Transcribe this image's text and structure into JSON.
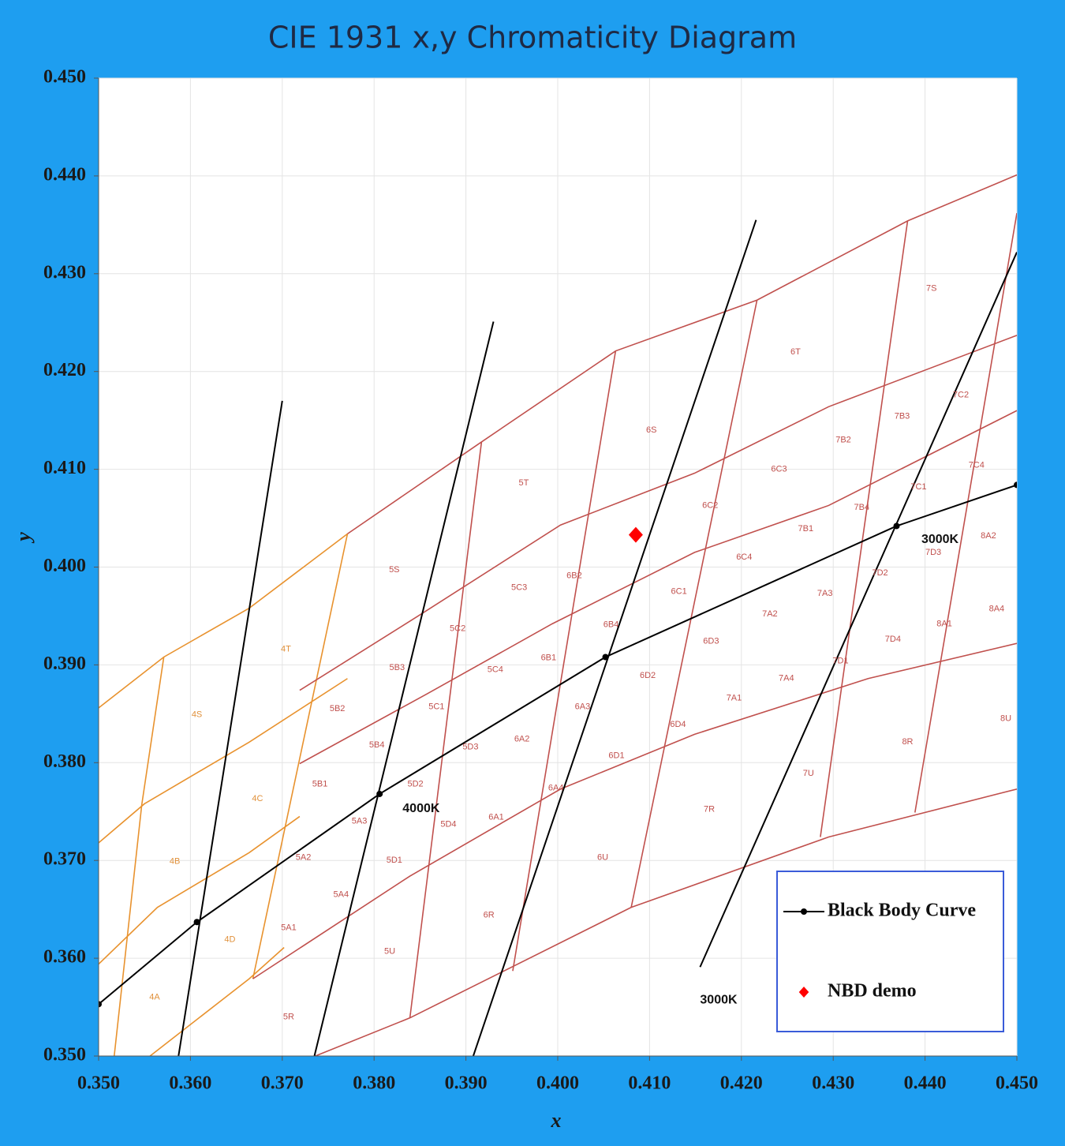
{
  "chart_data": {
    "type": "line",
    "title": "CIE 1931 x,y Chromaticity Diagram",
    "x_label": "x",
    "y_label": "y",
    "xlim": [
      0.35,
      0.45
    ],
    "ylim": [
      0.35,
      0.45
    ],
    "xticks": [
      {
        "value": 0.35,
        "label": "0.350"
      },
      {
        "value": 0.36,
        "label": "0.360"
      },
      {
        "value": 0.37,
        "label": "0.370"
      },
      {
        "value": 0.38,
        "label": "0.380"
      },
      {
        "value": 0.39,
        "label": "0.390"
      },
      {
        "value": 0.4,
        "label": "0.400"
      },
      {
        "value": 0.41,
        "label": "0.410"
      },
      {
        "value": 0.42,
        "label": "0.420"
      },
      {
        "value": 0.43,
        "label": "0.430"
      },
      {
        "value": 0.44,
        "label": "0.440"
      },
      {
        "value": 0.45,
        "label": "0.450"
      }
    ],
    "yticks": [
      {
        "value": 0.35,
        "label": "0.350"
      },
      {
        "value": 0.36,
        "label": "0.360"
      },
      {
        "value": 0.37,
        "label": "0.370"
      },
      {
        "value": 0.38,
        "label": "0.380"
      },
      {
        "value": 0.39,
        "label": "0.390"
      },
      {
        "value": 0.4,
        "label": "0.400"
      },
      {
        "value": 0.41,
        "label": "0.410"
      },
      {
        "value": 0.42,
        "label": "0.420"
      },
      {
        "value": 0.43,
        "label": "0.430"
      },
      {
        "value": 0.44,
        "label": "0.440"
      },
      {
        "value": 0.45,
        "label": "0.450"
      }
    ],
    "grid": true,
    "legend": "lower right",
    "series": [
      {
        "name": "Black Body Curve",
        "color": "#000000",
        "mode": "lines+markers",
        "x": [
          0.35,
          0.3607,
          0.3806,
          0.4052,
          0.4369,
          0.45
        ],
        "values": [
          0.3553,
          0.3637,
          0.3768,
          0.3908,
          0.4042,
          0.4084
        ]
      },
      {
        "name": "NBD demo",
        "color": "#ff0000",
        "mode": "markers",
        "x": [
          0.4085
        ],
        "values": [
          0.4033
        ]
      }
    ],
    "isotherms": {
      "color": "#000000",
      "lines": [
        {
          "x": [
            0.37,
            0.3587
          ],
          "y": [
            0.417,
            0.35
          ]
        },
        {
          "x": [
            0.393,
            0.3735
          ],
          "y": [
            0.4251,
            0.35
          ]
        },
        {
          "x": [
            0.4216,
            0.3908
          ],
          "y": [
            0.4355,
            0.35
          ]
        },
        {
          "x": [
            0.45,
            0.4155
          ],
          "y": [
            0.4322,
            0.3591
          ]
        }
      ]
    },
    "bin_lines": [
      {
        "color": "#e8922e",
        "x": [
          0.35,
          0.3571,
          0.3664,
          0.3771
        ],
        "y": [
          0.3856,
          0.3908,
          0.3958,
          0.4034
        ]
      },
      {
        "color": "#e8922e",
        "x": [
          0.35,
          0.355,
          0.3664,
          0.3771
        ],
        "y": [
          0.3718,
          0.3758,
          0.3821,
          0.3886
        ]
      },
      {
        "color": "#e8922e",
        "x": [
          0.35,
          0.3564,
          0.3664,
          0.3719
        ],
        "y": [
          0.3594,
          0.3652,
          0.3708,
          0.3745
        ]
      },
      {
        "color": "#e8922e",
        "x": [
          0.3556,
          0.3664,
          0.3702
        ],
        "y": [
          0.35,
          0.3579,
          0.3611
        ]
      },
      {
        "color": "#e8922e",
        "x": [
          0.3571,
          0.3547,
          0.3517
        ],
        "y": [
          0.3908,
          0.3757,
          0.35
        ]
      },
      {
        "color": "#e8922e",
        "x": [
          0.3771,
          0.3668
        ],
        "y": [
          0.4034,
          0.3579
        ]
      },
      {
        "color": "#c0504d",
        "x": [
          0.3771,
          0.3917,
          0.4063,
          0.4217,
          0.4381,
          0.45
        ],
        "y": [
          0.4034,
          0.4128,
          0.4221,
          0.4273,
          0.4354,
          0.4401
        ]
      },
      {
        "color": "#c0504d",
        "x": [
          0.3719,
          0.3848,
          0.4003,
          0.4149,
          0.4295,
          0.45
        ],
        "y": [
          0.3874,
          0.395,
          0.4043,
          0.4096,
          0.4164,
          0.4237
        ]
      },
      {
        "color": "#c0504d",
        "x": [
          0.3719,
          0.3857,
          0.3994,
          0.4149,
          0.4295,
          0.45
        ],
        "y": [
          0.3799,
          0.387,
          0.3942,
          0.4015,
          0.4063,
          0.416
        ]
      },
      {
        "color": "#c0504d",
        "x": [
          0.3668,
          0.3839,
          0.4003,
          0.4149,
          0.4338,
          0.45
        ],
        "y": [
          0.3579,
          0.3684,
          0.3773,
          0.3829,
          0.3886,
          0.3922
        ]
      },
      {
        "color": "#c0504d",
        "x": [
          0.3736,
          0.3839,
          0.408,
          0.4295,
          0.45
        ],
        "y": [
          0.35,
          0.3539,
          0.3652,
          0.3724,
          0.3773
        ]
      },
      {
        "color": "#c0504d",
        "x": [
          0.3917,
          0.3839
        ],
        "y": [
          0.4128,
          0.3539
        ]
      },
      {
        "color": "#c0504d",
        "x": [
          0.4063,
          0.3951
        ],
        "y": [
          0.4221,
          0.3587
        ]
      },
      {
        "color": "#c0504d",
        "x": [
          0.4217,
          0.408
        ],
        "y": [
          0.4273,
          0.3652
        ]
      },
      {
        "color": "#c0504d",
        "x": [
          0.4381,
          0.4286
        ],
        "y": [
          0.4354,
          0.3724
        ]
      },
      {
        "color": "#c0504d",
        "x": [
          0.45,
          0.4389
        ],
        "y": [
          0.4362,
          0.3749
        ]
      }
    ],
    "bin_labels": [
      {
        "color": "#e0903a",
        "labels": [
          {
            "text": "4S",
            "x": 0.3607,
            "y": 0.3849
          },
          {
            "text": "4T",
            "x": 0.3704,
            "y": 0.3916
          },
          {
            "text": "4C",
            "x": 0.3673,
            "y": 0.3763
          },
          {
            "text": "4B",
            "x": 0.3583,
            "y": 0.3699
          },
          {
            "text": "4D",
            "x": 0.3643,
            "y": 0.3619
          },
          {
            "text": "4A",
            "x": 0.3561,
            "y": 0.356
          }
        ]
      },
      {
        "color": "#c0504d",
        "labels": [
          {
            "text": "5R",
            "x": 0.3707,
            "y": 0.354
          },
          {
            "text": "5U",
            "x": 0.3817,
            "y": 0.3607
          },
          {
            "text": "6R",
            "x": 0.3925,
            "y": 0.3644
          },
          {
            "text": "6U",
            "x": 0.4049,
            "y": 0.3703
          },
          {
            "text": "7R",
            "x": 0.4165,
            "y": 0.3752
          },
          {
            "text": "7U",
            "x": 0.4273,
            "y": 0.3789
          },
          {
            "text": "8R",
            "x": 0.4381,
            "y": 0.3821
          },
          {
            "text": "8U",
            "x": 0.4488,
            "y": 0.3845
          },
          {
            "text": "5S",
            "x": 0.3822,
            "y": 0.3997
          },
          {
            "text": "5T",
            "x": 0.3963,
            "y": 0.4086
          },
          {
            "text": "6S",
            "x": 0.4102,
            "y": 0.414
          },
          {
            "text": "6T",
            "x": 0.4259,
            "y": 0.422
          },
          {
            "text": "7S",
            "x": 0.4407,
            "y": 0.4285
          },
          {
            "text": "5B2",
            "x": 0.376,
            "y": 0.3855
          },
          {
            "text": "5B3",
            "x": 0.3825,
            "y": 0.3897
          },
          {
            "text": "5C2",
            "x": 0.3891,
            "y": 0.3937
          },
          {
            "text": "5C3",
            "x": 0.3958,
            "y": 0.3979
          },
          {
            "text": "6B2",
            "x": 0.4018,
            "y": 0.3991
          },
          {
            "text": "6C2",
            "x": 0.4166,
            "y": 0.4063
          },
          {
            "text": "6C3",
            "x": 0.4241,
            "y": 0.41
          },
          {
            "text": "7B2",
            "x": 0.4311,
            "y": 0.413
          },
          {
            "text": "7B3",
            "x": 0.4375,
            "y": 0.4154
          },
          {
            "text": "7C2",
            "x": 0.4439,
            "y": 0.4176
          },
          {
            "text": "7C4",
            "x": 0.4456,
            "y": 0.4104
          },
          {
            "text": "7C1",
            "x": 0.4393,
            "y": 0.4082
          },
          {
            "text": "7B4",
            "x": 0.4331,
            "y": 0.4061
          },
          {
            "text": "7B1",
            "x": 0.427,
            "y": 0.4039
          },
          {
            "text": "6C4",
            "x": 0.4203,
            "y": 0.401
          },
          {
            "text": "6C1",
            "x": 0.4132,
            "y": 0.3975
          },
          {
            "text": "5B4",
            "x": 0.3803,
            "y": 0.3818
          },
          {
            "text": "5C1",
            "x": 0.3868,
            "y": 0.3857
          },
          {
            "text": "5C4",
            "x": 0.3932,
            "y": 0.3895
          },
          {
            "text": "6B1",
            "x": 0.399,
            "y": 0.3907
          },
          {
            "text": "6B4",
            "x": 0.4058,
            "y": 0.3941
          },
          {
            "text": "6D3",
            "x": 0.4167,
            "y": 0.3924
          },
          {
            "text": "7A2",
            "x": 0.4231,
            "y": 0.3952
          },
          {
            "text": "7A3",
            "x": 0.4291,
            "y": 0.3973
          },
          {
            "text": "7D2",
            "x": 0.4351,
            "y": 0.3994
          },
          {
            "text": "7D3",
            "x": 0.4409,
            "y": 0.4015
          },
          {
            "text": "8A2",
            "x": 0.4469,
            "y": 0.4032
          },
          {
            "text": "8A4",
            "x": 0.4478,
            "y": 0.3957
          },
          {
            "text": "8A1",
            "x": 0.4421,
            "y": 0.3942
          },
          {
            "text": "7D4",
            "x": 0.4365,
            "y": 0.3926
          },
          {
            "text": "7D1",
            "x": 0.4308,
            "y": 0.3904
          },
          {
            "text": "7A4",
            "x": 0.4249,
            "y": 0.3886
          },
          {
            "text": "7A1",
            "x": 0.4192,
            "y": 0.3866
          },
          {
            "text": "6D2",
            "x": 0.4098,
            "y": 0.3889
          },
          {
            "text": "6D4",
            "x": 0.4131,
            "y": 0.3839
          },
          {
            "text": "6D1",
            "x": 0.4064,
            "y": 0.3807
          },
          {
            "text": "6A3",
            "x": 0.4027,
            "y": 0.3857
          },
          {
            "text": "6A2",
            "x": 0.3961,
            "y": 0.3824
          },
          {
            "text": "5D3",
            "x": 0.3905,
            "y": 0.3816
          },
          {
            "text": "6A4",
            "x": 0.3998,
            "y": 0.3774
          },
          {
            "text": "6A1",
            "x": 0.3933,
            "y": 0.3744
          },
          {
            "text": "5D2",
            "x": 0.3845,
            "y": 0.3778
          },
          {
            "text": "5D4",
            "x": 0.3881,
            "y": 0.3737
          },
          {
            "text": "5B1",
            "x": 0.3741,
            "y": 0.3778
          },
          {
            "text": "5A3",
            "x": 0.3784,
            "y": 0.374
          },
          {
            "text": "5D1",
            "x": 0.3822,
            "y": 0.37
          },
          {
            "text": "5A2",
            "x": 0.3723,
            "y": 0.3703
          },
          {
            "text": "5A4",
            "x": 0.3764,
            "y": 0.3665
          },
          {
            "text": "5A1",
            "x": 0.3707,
            "y": 0.3631
          }
        ]
      }
    ],
    "annotations": [
      {
        "text": "4000K",
        "x": 0.3831,
        "y": 0.3753
      },
      {
        "text": "3000K",
        "x": 0.4396,
        "y": 0.4028
      },
      {
        "text": "3000K",
        "x": 0.4155,
        "y": 0.3557
      }
    ]
  }
}
